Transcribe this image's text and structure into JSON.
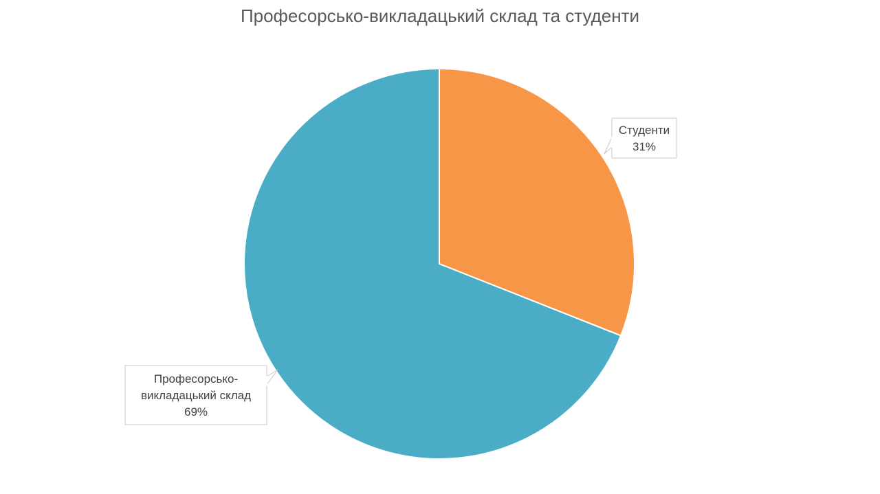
{
  "chart_data": {
    "type": "pie",
    "title": "Професорсько-викладацький склад та студенти",
    "slices": [
      {
        "label_lines": [
          "Студенти"
        ],
        "percent_label": "31%",
        "value": 31,
        "color": "#F79646"
      },
      {
        "label_lines": [
          "Професорсько-",
          "викладацький склад"
        ],
        "percent_label": "69%",
        "value": 69,
        "color": "#4BACC6"
      }
    ],
    "start_angle_deg": 0,
    "direction": "clockwise",
    "legend": "none",
    "data_labels": "callouts"
  }
}
